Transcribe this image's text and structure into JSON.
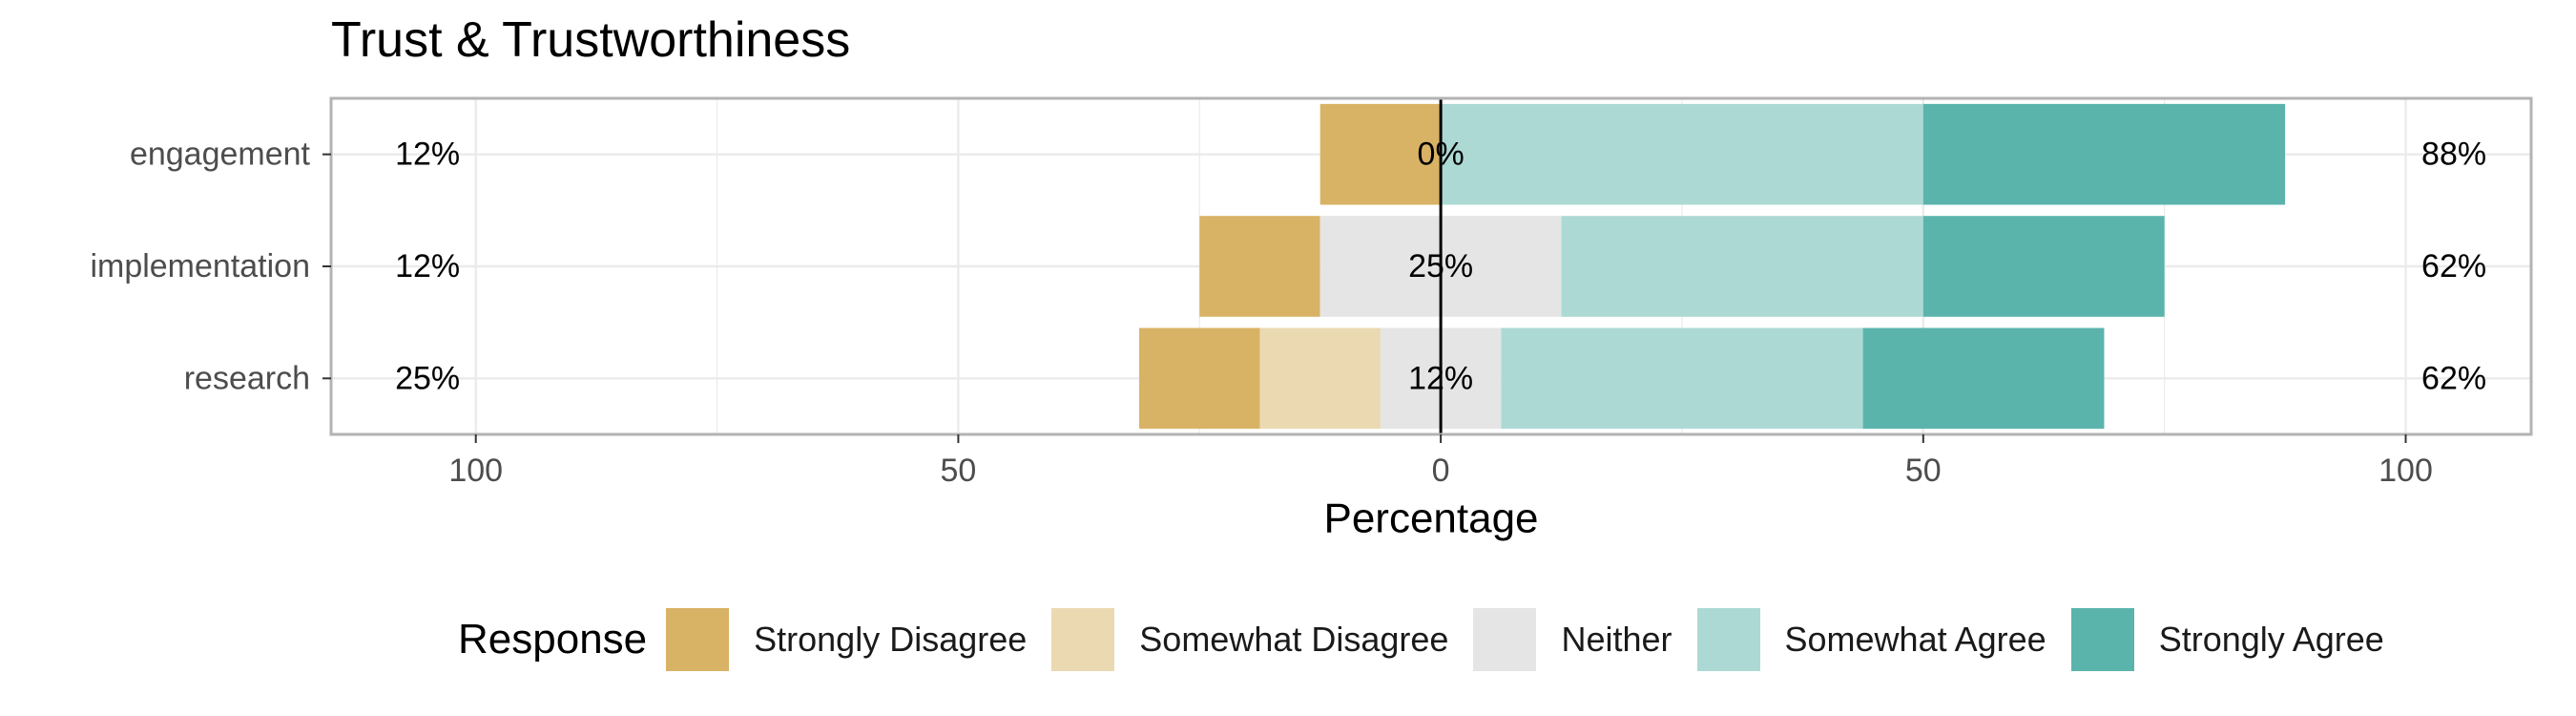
{
  "chart_data": {
    "type": "bar",
    "orientation": "horizontal-diverging",
    "title": "Trust & Trustworthiness",
    "xlabel": "Percentage",
    "ylabel": "",
    "xlim": [
      -115,
      113
    ],
    "xticks": [
      -100,
      -50,
      0,
      50,
      100
    ],
    "xtick_labels": [
      "100",
      "50",
      "0",
      "50",
      "100"
    ],
    "categories": [
      "engagement",
      "implementation",
      "research"
    ],
    "series": [
      {
        "name": "Strongly Disagree",
        "color": "#D8B365",
        "values": [
          12.5,
          12.5,
          12.5
        ]
      },
      {
        "name": "Somewhat Disagree",
        "color": "#EBD9B2",
        "values": [
          0,
          0,
          12.5
        ]
      },
      {
        "name": "Neither",
        "color": "#E5E5E5",
        "values": [
          0,
          25,
          12.5
        ]
      },
      {
        "name": "Somewhat Agree",
        "color": "#ADD9D5",
        "values": [
          50,
          37.5,
          37.5
        ]
      },
      {
        "name": "Strongly Agree",
        "color": "#5AB4AC",
        "values": [
          37.5,
          25,
          25
        ]
      }
    ],
    "low_labels": [
      "12%",
      "12%",
      "25%"
    ],
    "neutral_labels": [
      "0%",
      "25%",
      "12%"
    ],
    "high_labels": [
      "88%",
      "62%",
      "62%"
    ],
    "legend_title": "Response",
    "legend_position": "bottom",
    "grid": true
  }
}
